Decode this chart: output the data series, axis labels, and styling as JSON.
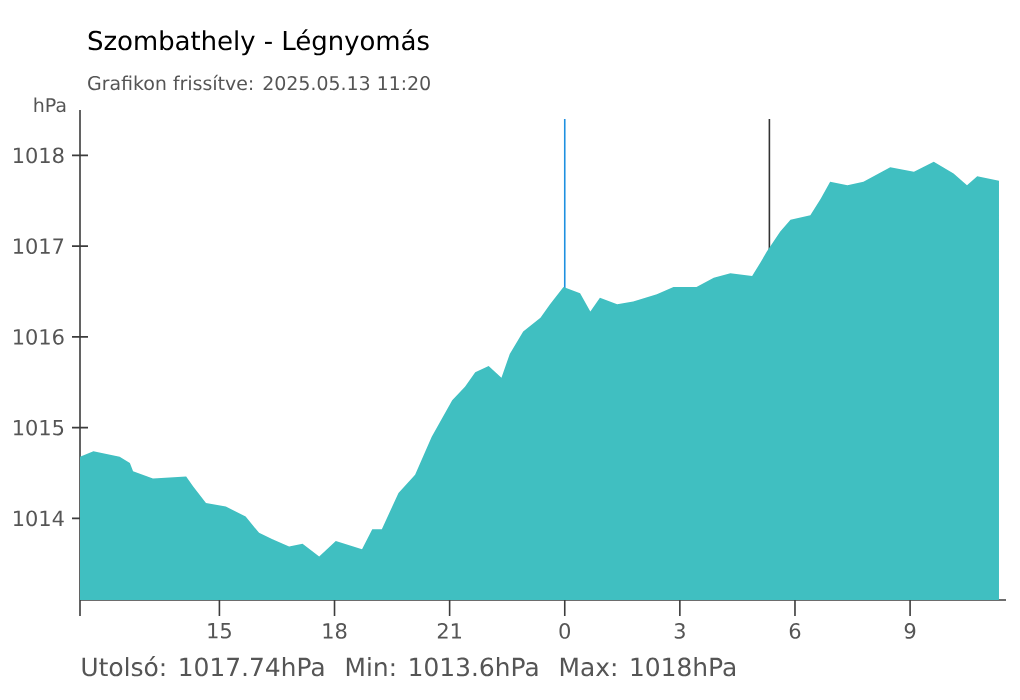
{
  "chart_data": {
    "type": "area",
    "title": "Szombathely - Légnyomás",
    "subtitle": "Grafikon frissítve: 2025.05.13 11:20",
    "ylabel": "hPa",
    "annotations": [
      "Utolsó: 1017.74hPa",
      "Min: 1013.6hPa",
      "Max: 1018hPa"
    ],
    "x": [
      "2025-05-12T11:22",
      "2025-05-12T11:43",
      "2025-05-12T12:24",
      "2025-05-12T12:40",
      "2025-05-12T12:45",
      "2025-05-12T13:16",
      "2025-05-12T14:08",
      "2025-05-12T14:19",
      "2025-05-12T14:39",
      "2025-05-12T15:10",
      "2025-05-12T15:41",
      "2025-05-12T16:02",
      "2025-05-12T16:23",
      "2025-05-12T16:49",
      "2025-05-12T17:10",
      "2025-05-12T17:36",
      "2025-05-12T18:02",
      "2025-05-12T18:43",
      "2025-05-12T18:59",
      "2025-05-12T19:14",
      "2025-05-12T19:40",
      "2025-05-12T20:06",
      "2025-05-12T20:32",
      "2025-05-12T21:04",
      "2025-05-12T21:24",
      "2025-05-12T21:40",
      "2025-05-12T22:01",
      "2025-05-12T22:21",
      "2025-05-12T22:34",
      "2025-05-12T22:55",
      "2025-05-12T23:22",
      "2025-05-12T23:37",
      "2025-05-12T23:58",
      "2025-05-13T00:24",
      "2025-05-13T00:40",
      "2025-05-13T00:55",
      "2025-05-13T01:22",
      "2025-05-13T01:47",
      "2025-05-13T02:24",
      "2025-05-13T02:50",
      "2025-05-13T03:26",
      "2025-05-13T03:53",
      "2025-05-13T04:19",
      "2025-05-13T04:53",
      "2025-05-13T05:06",
      "2025-05-13T05:16",
      "2025-05-13T05:37",
      "2025-05-13T05:53",
      "2025-05-13T06:24",
      "2025-05-13T06:40",
      "2025-05-13T06:55",
      "2025-05-13T07:22",
      "2025-05-13T07:47",
      "2025-05-13T08:29",
      "2025-05-13T09:06",
      "2025-05-13T09:37",
      "2025-05-13T10:08",
      "2025-05-13T10:29",
      "2025-05-13T10:45",
      "2025-05-13T11:19"
    ],
    "series": [
      {
        "color": "#40bfc1",
        "values": [
          1014.68,
          1014.74,
          1014.68,
          1014.61,
          1014.52,
          1014.44,
          1014.46,
          1014.35,
          1014.17,
          1014.13,
          1014.02,
          1013.84,
          1013.77,
          1013.69,
          1013.72,
          1013.58,
          1013.75,
          1013.66,
          1013.88,
          1013.88,
          1014.28,
          1014.48,
          1014.9,
          1015.3,
          1015.45,
          1015.61,
          1015.68,
          1015.55,
          1015.81,
          1016.06,
          1016.21,
          1016.36,
          1016.55,
          1016.48,
          1016.28,
          1016.43,
          1016.36,
          1016.39,
          1016.47,
          1016.55,
          1016.55,
          1016.65,
          1016.7,
          1016.67,
          1016.82,
          1016.94,
          1017.16,
          1017.29,
          1017.34,
          1017.52,
          1017.71,
          1017.67,
          1017.71,
          1017.87,
          1017.82,
          1017.93,
          1017.8,
          1017.67,
          1017.77,
          1017.72
        ]
      }
    ],
    "xlim": [
      "2025-05-12T11:22",
      "2025-05-13T11:30"
    ],
    "xticks": [
      {
        "value": "2025-05-12T11:22",
        "label": null
      },
      {
        "value": "2025-05-12T15:00",
        "label": "15"
      },
      {
        "value": "2025-05-12T18:00",
        "label": "18"
      },
      {
        "value": "2025-05-12T21:00",
        "label": "21"
      },
      {
        "value": "2025-05-13T00:00",
        "label": "0"
      },
      {
        "value": "2025-05-13T03:00",
        "label": "3"
      },
      {
        "value": "2025-05-13T06:00",
        "label": "6"
      },
      {
        "value": "2025-05-13T09:00",
        "label": "9"
      }
    ],
    "ylim": [
      1013.1,
      1018.5
    ],
    "yticks": [
      1014,
      1015,
      1016,
      1017,
      1018
    ],
    "ref_lines": [
      {
        "axis": "x",
        "value": "2025-05-13T00:00",
        "color": "#1e90e0"
      },
      {
        "axis": "x",
        "value": "2025-05-13T05:20",
        "color": "#333333"
      }
    ]
  }
}
